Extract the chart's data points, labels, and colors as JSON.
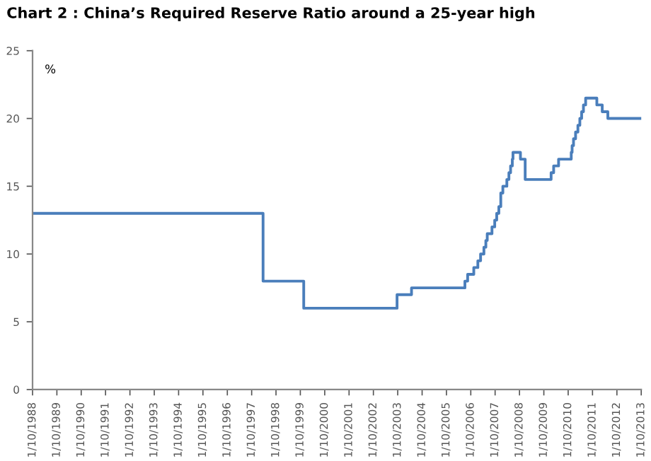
{
  "chart_data": {
    "type": "step",
    "title": "Chart 2 : China’s Required Reserve Ratio around a 25-year high",
    "ylabel": "%",
    "x": [
      "1988-10-01",
      "1998-03-21",
      "1999-11-21",
      "2003-09-21",
      "2004-04-25",
      "2006-07-05",
      "2006-08-15",
      "2006-11-15",
      "2007-01-15",
      "2007-02-25",
      "2007-04-16",
      "2007-05-15",
      "2007-06-05",
      "2007-08-15",
      "2007-09-25",
      "2007-10-25",
      "2007-11-26",
      "2007-12-25",
      "2008-01-25",
      "2008-03-25",
      "2008-04-25",
      "2008-05-20",
      "2008-06-15",
      "2008-06-25",
      "2008-10-15",
      "2008-12-25",
      "2010-01-18",
      "2010-02-25",
      "2010-05-10",
      "2010-11-16",
      "2010-11-29",
      "2010-12-20",
      "2011-01-20",
      "2011-02-24",
      "2011-03-25",
      "2011-04-21",
      "2011-05-18",
      "2011-06-20",
      "2011-12-05",
      "2012-02-24",
      "2012-05-18",
      "2013-10-01"
    ],
    "series": [
      {
        "color": "#4a7ebb",
        "values": [
          13,
          8,
          6,
          7,
          7.5,
          8,
          8.5,
          9,
          9.5,
          10,
          10.5,
          11,
          11.5,
          12,
          12.5,
          13,
          13.5,
          14.5,
          15,
          15.5,
          16,
          16.5,
          17,
          17.5,
          17,
          15.5,
          16,
          16.5,
          17,
          17.5,
          18,
          18.5,
          19,
          19.5,
          20,
          20.5,
          21,
          21.5,
          21,
          20.5,
          20,
          20
        ]
      }
    ],
    "xlim": [
      "1988-10-01",
      "2013-10-01"
    ],
    "xticks": [
      {
        "value": "1988-10-01",
        "label": "1/10/1988"
      },
      {
        "value": "1989-10-01",
        "label": "1/10/1989"
      },
      {
        "value": "1990-10-01",
        "label": "1/10/1990"
      },
      {
        "value": "1991-10-01",
        "label": "1/10/1991"
      },
      {
        "value": "1992-10-01",
        "label": "1/10/1992"
      },
      {
        "value": "1993-10-01",
        "label": "1/10/1993"
      },
      {
        "value": "1994-10-01",
        "label": "1/10/1994"
      },
      {
        "value": "1995-10-01",
        "label": "1/10/1995"
      },
      {
        "value": "1996-10-01",
        "label": "1/10/1996"
      },
      {
        "value": "1997-10-01",
        "label": "1/10/1997"
      },
      {
        "value": "1998-10-01",
        "label": "1/10/1998"
      },
      {
        "value": "1999-10-01",
        "label": "1/10/1999"
      },
      {
        "value": "2000-10-01",
        "label": "1/10/2000"
      },
      {
        "value": "2001-10-01",
        "label": "1/10/2001"
      },
      {
        "value": "2002-10-01",
        "label": "1/10/2002"
      },
      {
        "value": "2003-10-01",
        "label": "1/10/2003"
      },
      {
        "value": "2004-10-01",
        "label": "1/10/2004"
      },
      {
        "value": "2005-10-01",
        "label": "1/10/2005"
      },
      {
        "value": "2006-10-01",
        "label": "1/10/2006"
      },
      {
        "value": "2007-10-01",
        "label": "1/10/2007"
      },
      {
        "value": "2008-10-01",
        "label": "1/10/2008"
      },
      {
        "value": "2009-10-01",
        "label": "1/10/2009"
      },
      {
        "value": "2010-10-01",
        "label": "1/10/2010"
      },
      {
        "value": "2011-10-01",
        "label": "1/10/2011"
      },
      {
        "value": "2012-10-01",
        "label": "1/10/2012"
      },
      {
        "value": "2013-10-01",
        "label": "1/10/2013"
      }
    ],
    "ylim": [
      0,
      25
    ],
    "yticks": [
      0,
      5,
      10,
      15,
      20,
      25
    ],
    "grid": false,
    "legend": false,
    "line_style": "solid",
    "marker": "none"
  }
}
